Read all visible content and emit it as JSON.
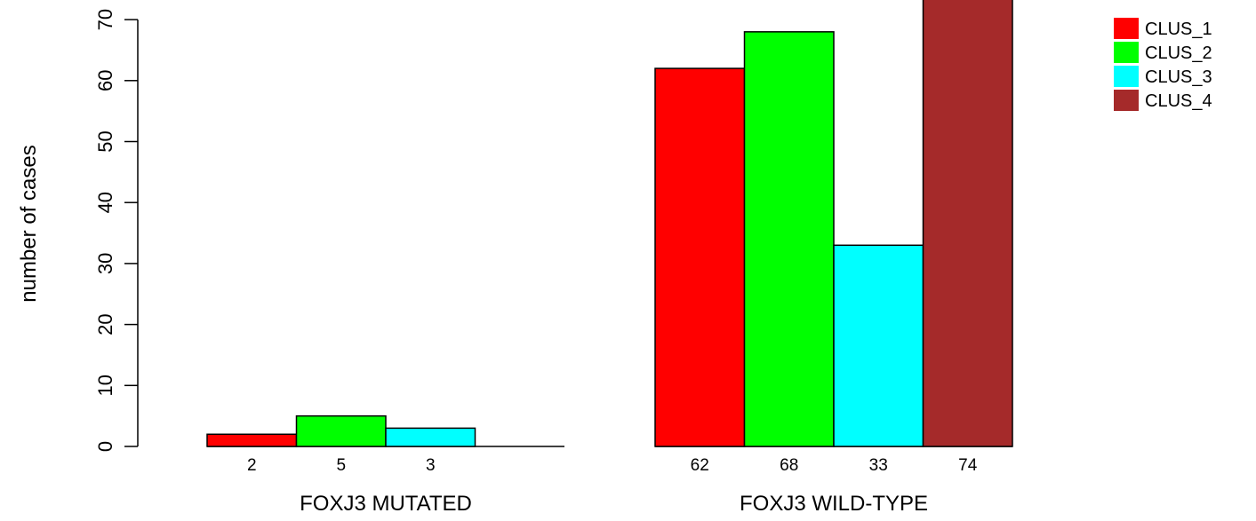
{
  "chart_data": {
    "type": "bar",
    "groups": [
      "FOXJ3 MUTATED",
      "FOXJ3 WILD-TYPE"
    ],
    "series": [
      {
        "name": "CLUS_1",
        "color": "#ff0000",
        "values": [
          2,
          62
        ]
      },
      {
        "name": "CLUS_2",
        "color": "#00ff00",
        "values": [
          5,
          68
        ]
      },
      {
        "name": "CLUS_3",
        "color": "#00ffff",
        "values": [
          3,
          33
        ]
      },
      {
        "name": "CLUS_4",
        "color": "#a52a2a",
        "values": [
          0,
          74
        ]
      }
    ],
    "value_labels": [
      [
        "2",
        "5",
        "3",
        ""
      ],
      [
        "62",
        "68",
        "33",
        "74"
      ]
    ],
    "ylabel": "number of cases",
    "yticks": [
      0,
      10,
      20,
      30,
      40,
      50,
      60,
      70
    ],
    "ylim": [
      0,
      70
    ],
    "legend_position": "top-right",
    "grid": false
  }
}
